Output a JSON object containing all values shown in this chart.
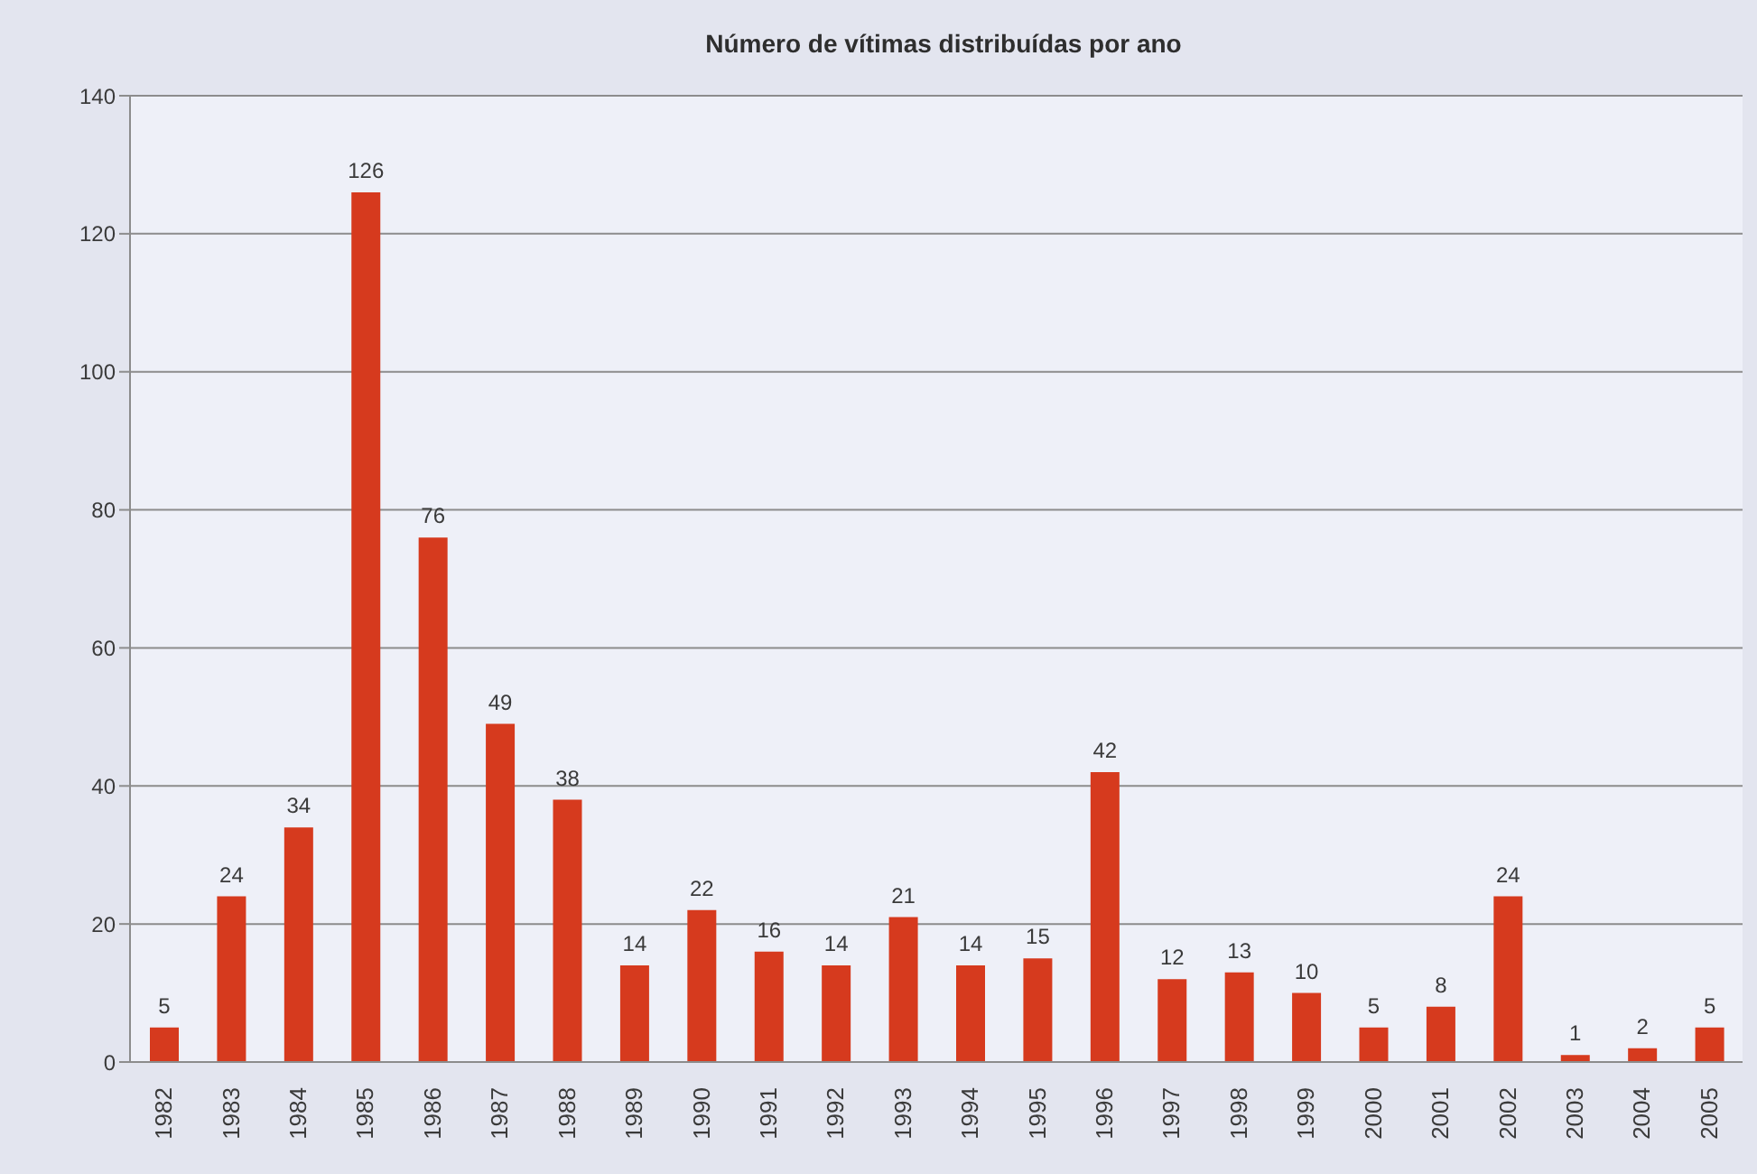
{
  "chart_data": {
    "type": "bar",
    "title": "Número de vítimas distribuídas por ano",
    "categories": [
      "1982",
      "1983",
      "1984",
      "1985",
      "1986",
      "1987",
      "1988",
      "1989",
      "1990",
      "1991",
      "1992",
      "1993",
      "1994",
      "1995",
      "1996",
      "1997",
      "1998",
      "1999",
      "2000",
      "2001",
      "2002",
      "2003",
      "2004",
      "2005"
    ],
    "values": [
      5,
      24,
      34,
      126,
      76,
      49,
      38,
      14,
      22,
      16,
      14,
      21,
      14,
      15,
      42,
      12,
      13,
      10,
      5,
      8,
      24,
      1,
      2,
      5
    ],
    "color": "#d63a1e",
    "ylim": [
      0,
      140
    ],
    "yticks": [
      0,
      20,
      40,
      60,
      80,
      100,
      120,
      140
    ],
    "grid": "y",
    "data_labels": true
  }
}
